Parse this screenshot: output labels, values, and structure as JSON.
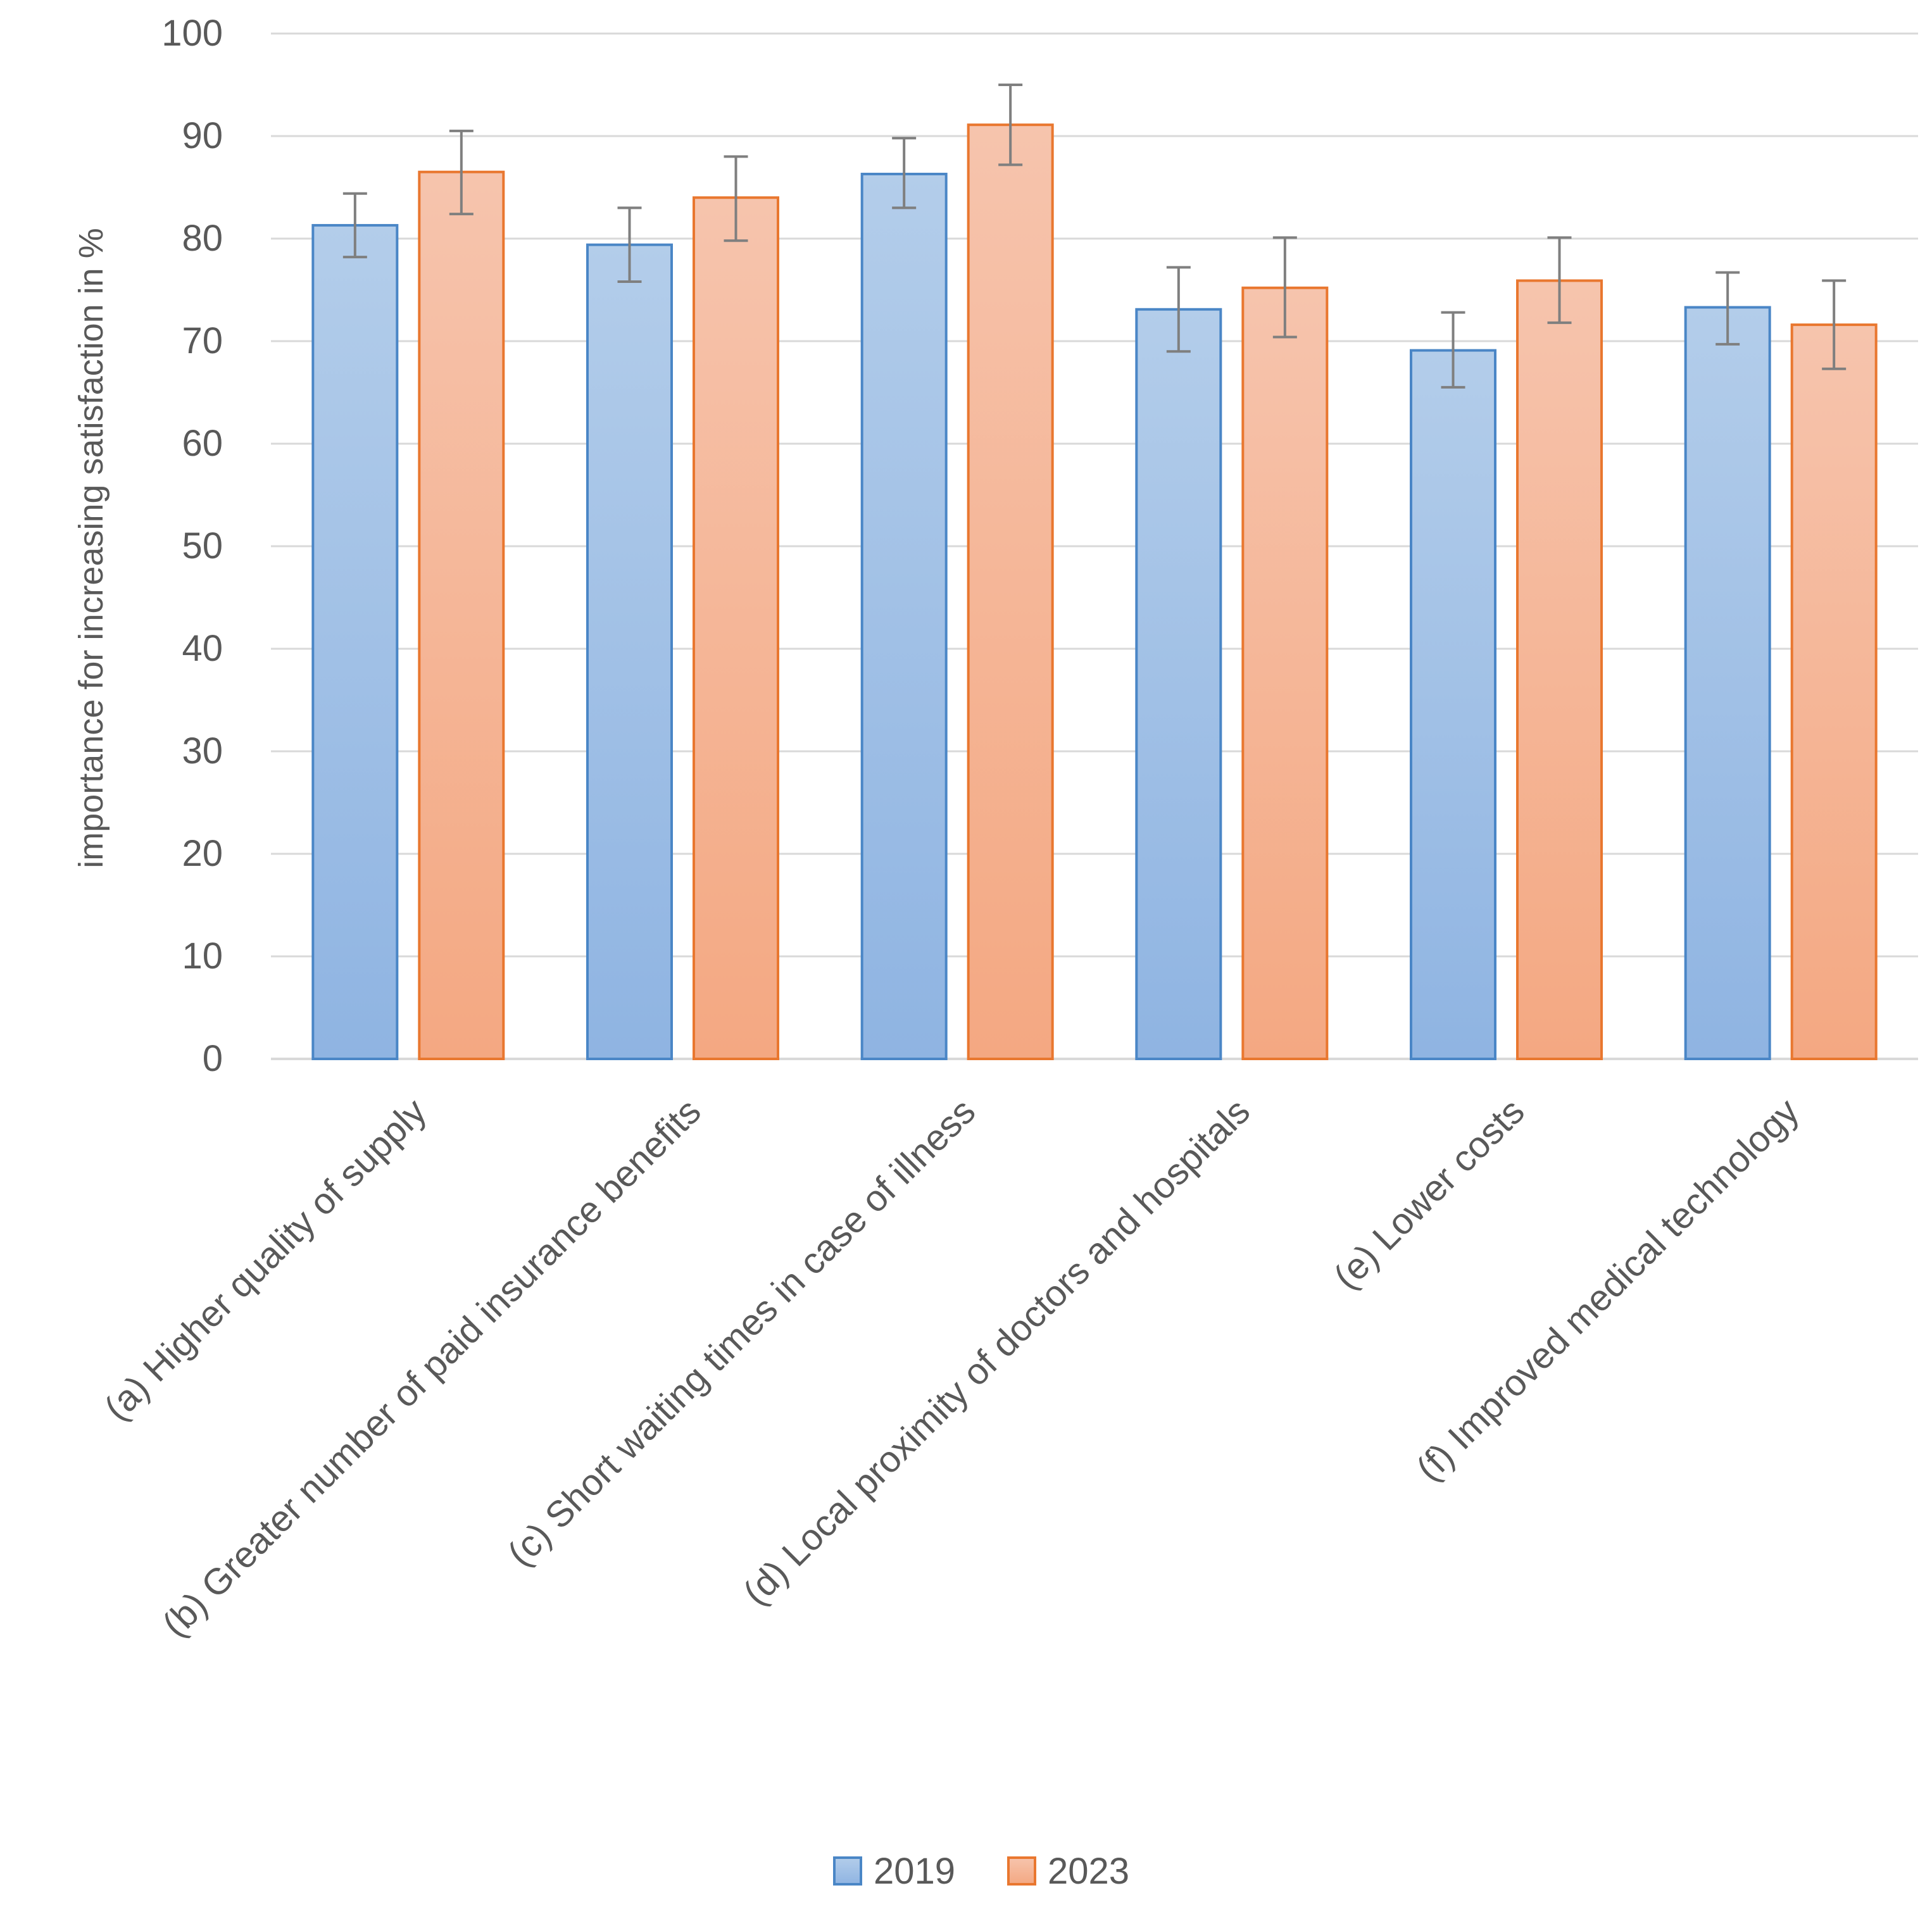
{
  "chart_data": {
    "type": "bar",
    "title": "",
    "xlabel": "",
    "ylabel": "importance for increasing satisfaction in %",
    "ylim": [
      0,
      100
    ],
    "yticks": [
      0,
      10,
      20,
      30,
      40,
      50,
      60,
      70,
      80,
      90,
      100
    ],
    "grid": true,
    "legend_position": "bottom",
    "error_bars": true,
    "categories": [
      "(a) Higher quality of supply",
      "(b) Greater number of paid insurance benefits",
      "(c) Short waiting times in case of illness",
      "(d) Local proximity of doctors and hospitals",
      "(e) Lower costs",
      "(f) Improved medical technology"
    ],
    "series": [
      {
        "name": "2019",
        "color_light": "#b3cdea",
        "color_dark": "#8fb4e2",
        "border": "#4a86c6",
        "values": [
          81.3,
          79.4,
          86.3,
          73.1,
          69.1,
          73.3
        ],
        "error_low": [
          78.2,
          75.8,
          83.0,
          69.0,
          65.5,
          69.7
        ],
        "error_high": [
          84.4,
          83.0,
          89.8,
          77.2,
          72.8,
          76.7
        ]
      },
      {
        "name": "2023",
        "color_light": "#f6c4ad",
        "color_dark": "#f4a882",
        "border": "#e9772f",
        "values": [
          86.5,
          84.0,
          91.1,
          75.2,
          75.9,
          71.6
        ],
        "error_low": [
          82.4,
          79.8,
          87.2,
          70.4,
          71.8,
          67.3
        ],
        "error_high": [
          90.5,
          88.0,
          95.0,
          80.1,
          80.1,
          75.9
        ]
      }
    ]
  },
  "colors": {
    "grid": "#d9d9d9",
    "text": "#595959",
    "error_bar": "#7f7f7f"
  }
}
